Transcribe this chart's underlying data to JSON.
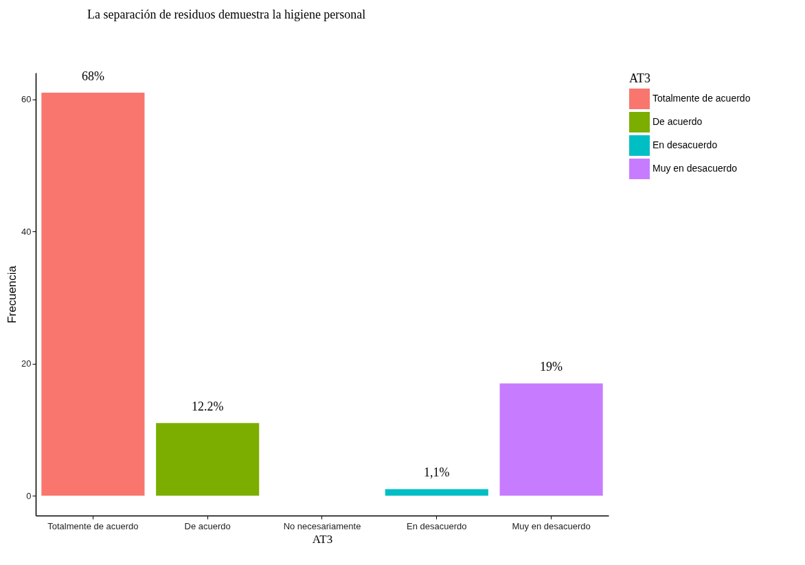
{
  "chart_data": {
    "type": "bar",
    "title": "La separación de residuos demuestra la higiene personal",
    "categories": [
      "Totalmente de acuerdo",
      "De acuerdo",
      "No necesariamente",
      "En desacuerdo",
      "Muy en desacuerdo"
    ],
    "series": [
      {
        "name": "Totalmente de acuerdo",
        "color": "#f8766d",
        "values": [
          61,
          null,
          null,
          null,
          null
        ]
      },
      {
        "name": "De acuerdo",
        "color": "#7cae00",
        "values": [
          null,
          11,
          null,
          null,
          null
        ]
      },
      {
        "name": "En desacuerdo",
        "color": "#00bfc4",
        "values": [
          null,
          null,
          null,
          1,
          null
        ]
      },
      {
        "name": "Muy en desacuerdo",
        "color": "#c77cff",
        "values": [
          null,
          null,
          null,
          null,
          17
        ]
      }
    ],
    "value_labels": [
      "68%",
      "12.2%",
      null,
      "1,1%",
      "19%"
    ],
    "xlabel": "AT3",
    "ylabel": "Frecuencia",
    "legend_title": "AT3",
    "legend": "right",
    "ylim": [
      -3,
      64
    ],
    "yticks": [
      0,
      20,
      40,
      60
    ],
    "grid": false
  }
}
